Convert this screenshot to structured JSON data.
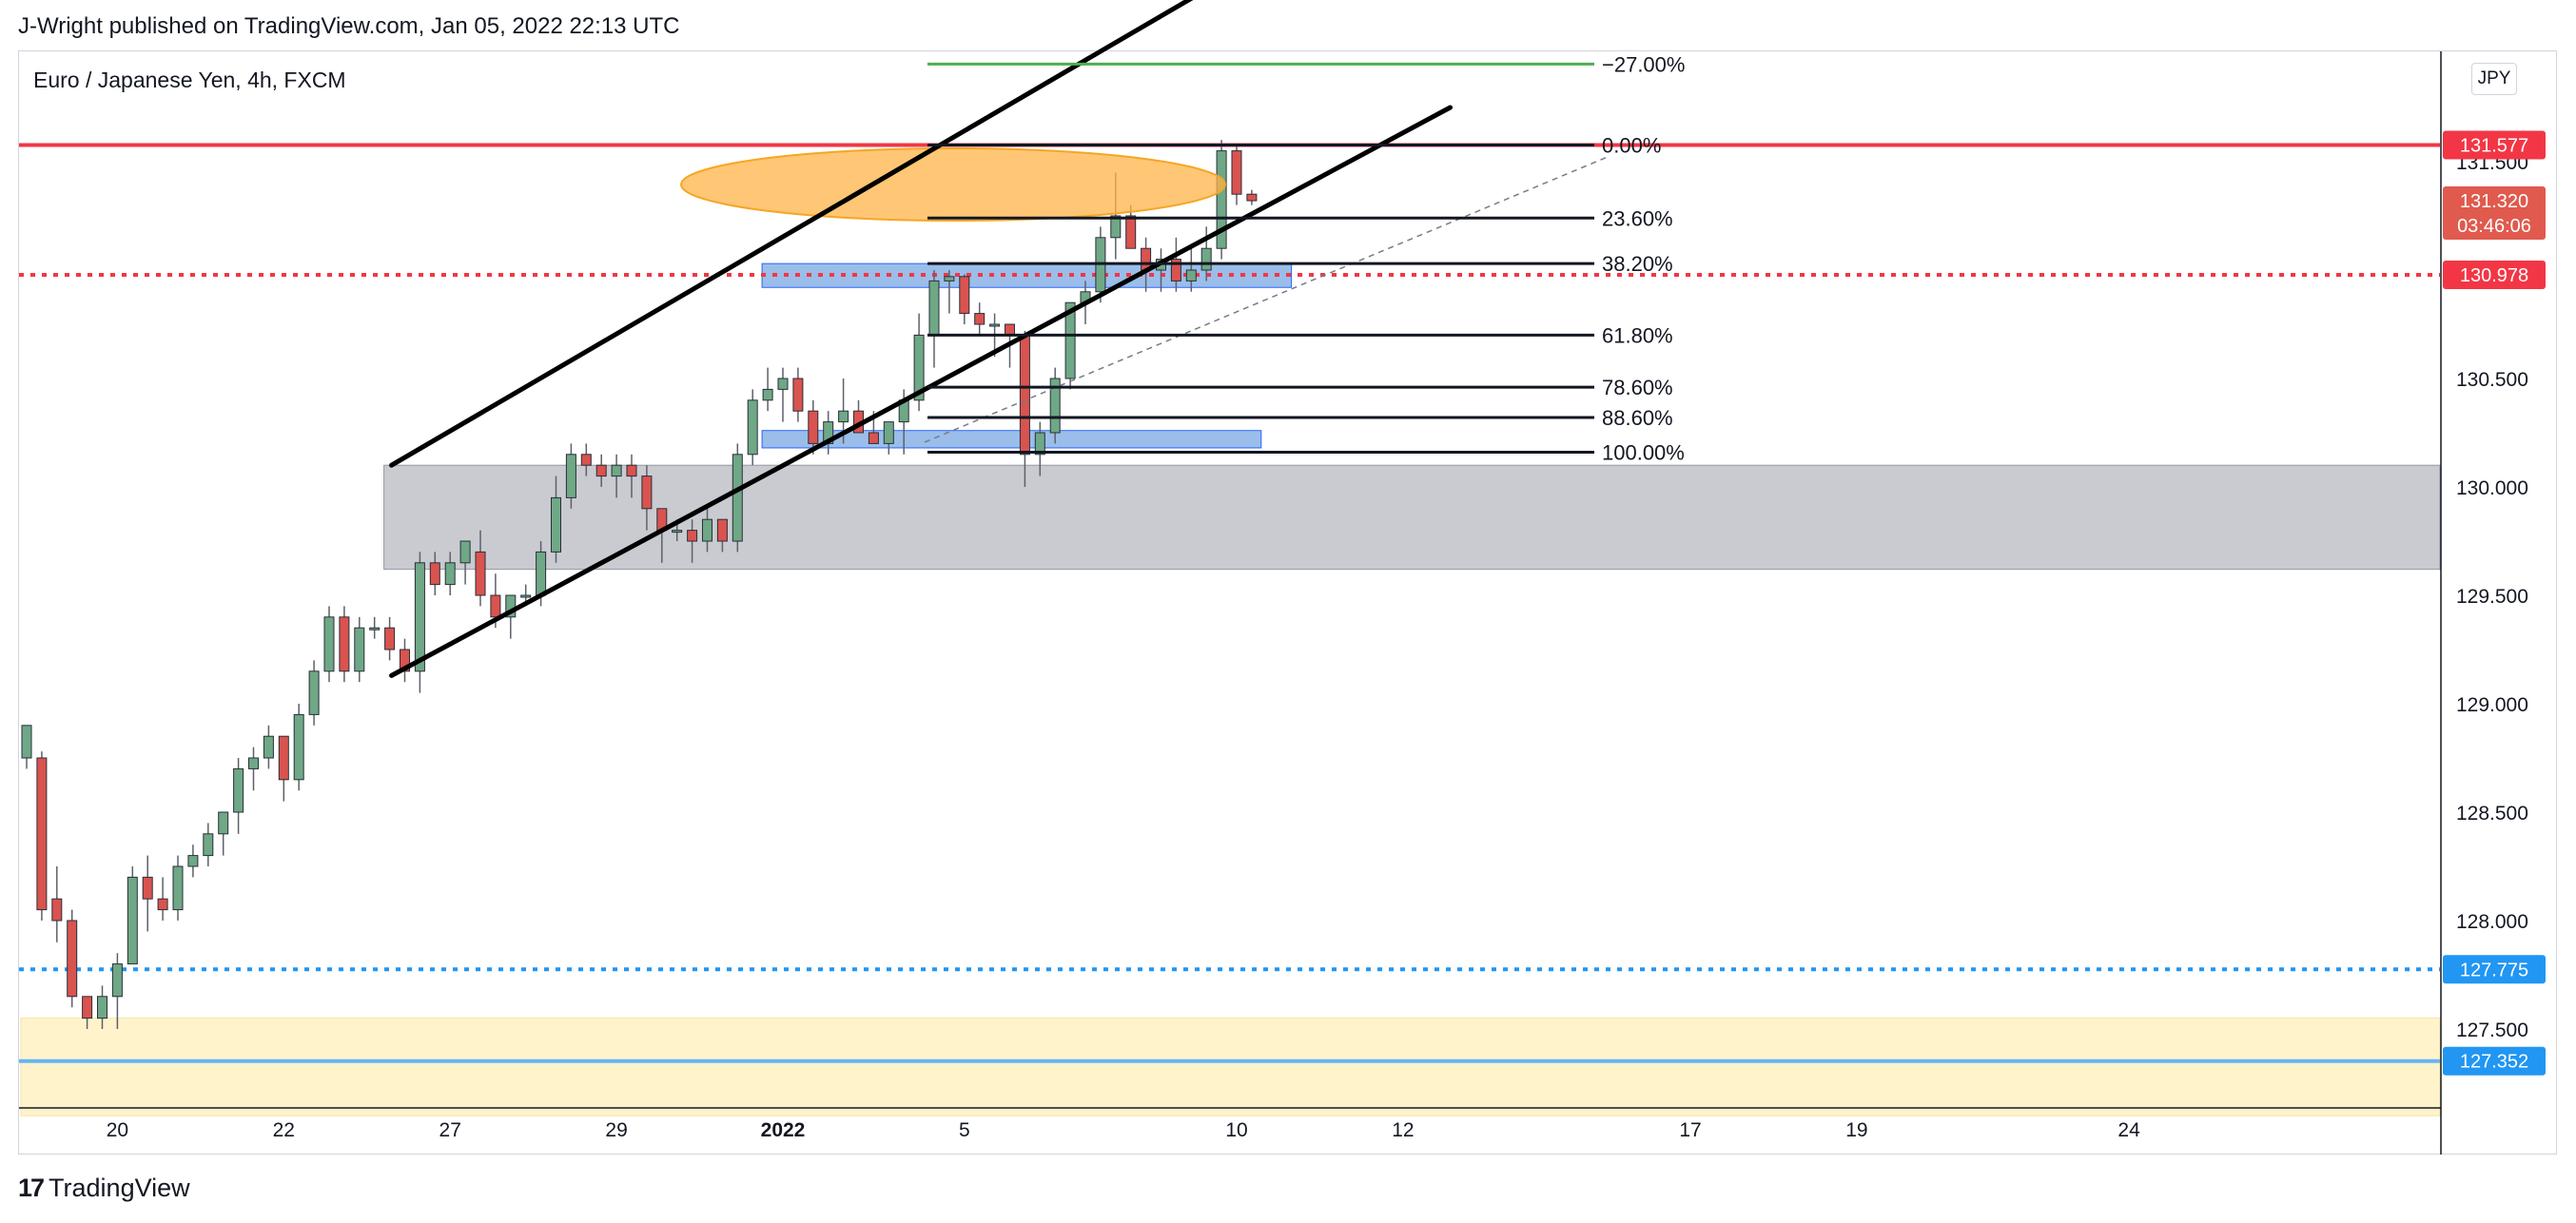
{
  "header": {
    "text": "J-Wright published on TradingView.com, Jan 05, 2022 22:13 UTC"
  },
  "symbol_title": "Euro / Japanese Yen, 4h, FXCM",
  "currency_button": "JPY",
  "footer": {
    "logo": "17",
    "brand": "TradingView"
  },
  "colors": {
    "up": "#26a69a",
    "up_body": "#6fa886",
    "down": "#d9534f",
    "red_line": "#f23645",
    "blue_dot": "#2196f3",
    "zone_gray": "#b2b5be",
    "zone_yellow": "#fff3cc",
    "ellipse": "#ffb347",
    "fib_green": "#4caf50"
  },
  "chart_data": {
    "type": "candlestick",
    "title": "Euro / Japanese Yen, 4h, FXCM",
    "ylim": [
      126.9,
      131.85
    ],
    "y_ticks": [
      "131.500",
      "130.500",
      "130.000",
      "129.500",
      "129.000",
      "128.500",
      "128.000",
      "127.500"
    ],
    "x_ticks": [
      "20",
      "22",
      "27",
      "29",
      "2022",
      "5",
      "10",
      "12",
      "17",
      "19",
      "24"
    ],
    "x_tick_bars": [
      6,
      17,
      28,
      39,
      50,
      62,
      80,
      91,
      110,
      121,
      139
    ],
    "candles": [
      [
        128.75,
        128.9,
        128.7,
        128.9
      ],
      [
        128.75,
        128.78,
        128.0,
        128.05
      ],
      [
        128.1,
        128.25,
        127.9,
        128.0
      ],
      [
        128.0,
        128.05,
        127.6,
        127.65
      ],
      [
        127.65,
        127.65,
        127.5,
        127.55
      ],
      [
        127.55,
        127.7,
        127.5,
        127.65
      ],
      [
        127.65,
        127.85,
        127.5,
        127.8
      ],
      [
        127.8,
        128.25,
        127.8,
        128.2
      ],
      [
        128.2,
        128.3,
        127.95,
        128.1
      ],
      [
        128.1,
        128.2,
        128.0,
        128.05
      ],
      [
        128.05,
        128.3,
        128.0,
        128.25
      ],
      [
        128.25,
        128.35,
        128.2,
        128.3
      ],
      [
        128.3,
        128.45,
        128.25,
        128.4
      ],
      [
        128.4,
        128.5,
        128.3,
        128.5
      ],
      [
        128.5,
        128.75,
        128.4,
        128.7
      ],
      [
        128.7,
        128.8,
        128.6,
        128.75
      ],
      [
        128.75,
        128.9,
        128.7,
        128.85
      ],
      [
        128.85,
        128.85,
        128.55,
        128.65
      ],
      [
        128.65,
        129.0,
        128.6,
        128.95
      ],
      [
        128.95,
        129.2,
        128.9,
        129.15
      ],
      [
        129.15,
        129.45,
        129.1,
        129.4
      ],
      [
        129.4,
        129.45,
        129.1,
        129.15
      ],
      [
        129.15,
        129.4,
        129.1,
        129.35
      ],
      [
        129.35,
        129.4,
        129.3,
        129.35
      ],
      [
        129.35,
        129.4,
        129.2,
        129.25
      ],
      [
        129.25,
        129.3,
        129.1,
        129.15
      ],
      [
        129.15,
        129.7,
        129.05,
        129.65
      ],
      [
        129.65,
        129.7,
        129.5,
        129.55
      ],
      [
        129.55,
        129.7,
        129.5,
        129.65
      ],
      [
        129.65,
        129.75,
        129.55,
        129.75
      ],
      [
        129.7,
        129.8,
        129.45,
        129.5
      ],
      [
        129.5,
        129.6,
        129.35,
        129.4
      ],
      [
        129.4,
        129.5,
        129.3,
        129.5
      ],
      [
        129.5,
        129.55,
        129.45,
        129.5
      ],
      [
        129.5,
        129.75,
        129.45,
        129.7
      ],
      [
        129.7,
        130.05,
        129.65,
        129.95
      ],
      [
        129.95,
        130.2,
        129.9,
        130.15
      ],
      [
        130.15,
        130.2,
        130.05,
        130.1
      ],
      [
        130.1,
        130.15,
        130.0,
        130.05
      ],
      [
        130.05,
        130.15,
        129.95,
        130.1
      ],
      [
        130.1,
        130.15,
        129.95,
        130.05
      ],
      [
        130.05,
        130.1,
        129.8,
        129.9
      ],
      [
        129.9,
        129.9,
        129.65,
        129.8
      ],
      [
        129.8,
        129.85,
        129.75,
        129.8
      ],
      [
        129.8,
        129.85,
        129.65,
        129.75
      ],
      [
        129.75,
        129.9,
        129.7,
        129.85
      ],
      [
        129.85,
        129.85,
        129.7,
        129.75
      ],
      [
        129.75,
        130.2,
        129.7,
        130.15
      ],
      [
        130.15,
        130.45,
        130.1,
        130.4
      ],
      [
        130.4,
        130.55,
        130.35,
        130.45
      ],
      [
        130.45,
        130.55,
        130.3,
        130.5
      ],
      [
        130.5,
        130.55,
        130.3,
        130.35
      ],
      [
        130.35,
        130.4,
        130.15,
        130.2
      ],
      [
        130.2,
        130.35,
        130.15,
        130.3
      ],
      [
        130.3,
        130.5,
        130.2,
        130.35
      ],
      [
        130.35,
        130.4,
        130.25,
        130.25
      ],
      [
        130.25,
        130.35,
        130.2,
        130.2
      ],
      [
        130.2,
        130.3,
        130.15,
        130.3
      ],
      [
        130.3,
        130.45,
        130.15,
        130.4
      ],
      [
        130.4,
        130.8,
        130.35,
        130.7
      ],
      [
        130.7,
        131.0,
        130.55,
        130.95
      ],
      [
        130.95,
        131.0,
        130.8,
        130.97
      ],
      [
        130.97,
        130.98,
        130.75,
        130.8
      ],
      [
        130.8,
        130.85,
        130.7,
        130.75
      ],
      [
        130.75,
        130.8,
        130.6,
        130.75
      ],
      [
        130.75,
        130.75,
        130.55,
        130.7
      ],
      [
        130.7,
        130.72,
        130.0,
        130.15
      ],
      [
        130.15,
        130.3,
        130.05,
        130.25
      ],
      [
        130.25,
        130.55,
        130.2,
        130.5
      ],
      [
        130.5,
        130.85,
        130.45,
        130.85
      ],
      [
        130.85,
        130.95,
        130.75,
        130.9
      ],
      [
        130.9,
        131.2,
        130.85,
        131.15
      ],
      [
        131.15,
        131.45,
        131.05,
        131.25
      ],
      [
        131.25,
        131.3,
        131.1,
        131.1
      ],
      [
        131.1,
        131.15,
        130.9,
        131.0
      ],
      [
        131.0,
        131.1,
        130.9,
        131.05
      ],
      [
        131.05,
        131.15,
        130.9,
        130.95
      ],
      [
        130.95,
        131.1,
        130.9,
        131.0
      ],
      [
        131.0,
        131.2,
        130.95,
        131.1
      ],
      [
        131.1,
        131.6,
        131.05,
        131.55
      ],
      [
        131.55,
        131.58,
        131.3,
        131.35
      ],
      [
        131.35,
        131.37,
        131.3,
        131.32
      ]
    ],
    "fib_levels": [
      {
        "label": "−27.00%",
        "price": 131.95,
        "color": "#4caf50"
      },
      {
        "label": "0.00%",
        "price": 131.577,
        "color": "#131722"
      },
      {
        "label": "23.60%",
        "price": 131.24,
        "color": "#131722"
      },
      {
        "label": "38.20%",
        "price": 131.03,
        "color": "#131722"
      },
      {
        "label": "61.80%",
        "price": 130.7,
        "color": "#131722"
      },
      {
        "label": "78.60%",
        "price": 130.46,
        "color": "#131722"
      },
      {
        "label": "88.60%",
        "price": 130.32,
        "color": "#131722"
      },
      {
        "label": "100.00%",
        "price": 130.16,
        "color": "#131722"
      }
    ],
    "price_tags": [
      {
        "label": "131.577",
        "price": 131.577,
        "color": "#f23645"
      },
      {
        "label": "131.320",
        "sub": "03:46:06",
        "price": 131.32,
        "color": "#e05a4e"
      },
      {
        "label": "130.978",
        "price": 130.978,
        "color": "#f23645"
      },
      {
        "label": "127.775",
        "price": 127.775,
        "color": "#2196f3"
      },
      {
        "label": "127.352",
        "price": 127.352,
        "color": "#2196f3"
      }
    ],
    "horizontal_lines": [
      {
        "price": 131.577,
        "style": "solid",
        "color": "#f23645"
      },
      {
        "price": 130.978,
        "style": "dotted",
        "color": "#f23645"
      },
      {
        "price": 127.775,
        "style": "dotted",
        "color": "#2196f3"
      },
      {
        "price": 127.352,
        "style": "solid",
        "color": "#64b5f6"
      }
    ],
    "zones": [
      {
        "name": "gray-support-zone",
        "from_bar": 24,
        "to_bar": null,
        "top": 130.1,
        "bottom": 129.62,
        "color": "#b2b5be"
      },
      {
        "name": "yellow-demand-zone",
        "from_bar": 0,
        "to_bar": null,
        "top": 127.55,
        "bottom": 127.1,
        "color": "#fff3cc"
      },
      {
        "name": "blue-zone-upper",
        "from_bar": 49,
        "to_bar": 84,
        "top": 131.03,
        "bottom": 130.92,
        "color": "#6fa3e0"
      },
      {
        "name": "blue-zone-lower",
        "from_bar": 49,
        "to_bar": 82,
        "top": 130.26,
        "bottom": 130.18,
        "color": "#6fa3e0"
      }
    ],
    "channel": {
      "upper": {
        "x1_bar": 24.5,
        "p1": 130.1,
        "x2_bar": 80.5,
        "p2": 132.38
      },
      "lower": {
        "x1_bar": 24.5,
        "p1": 129.13,
        "x2_bar": 94.5,
        "p2": 131.75
      }
    }
  }
}
